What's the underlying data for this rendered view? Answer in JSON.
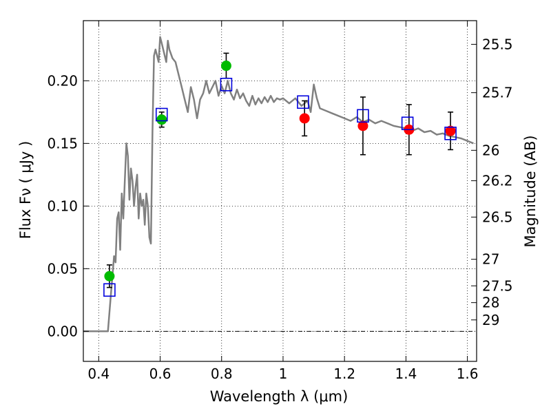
{
  "chart_data": {
    "type": "scatter",
    "xlabel": "Wavelength  λ (μm)",
    "ylabel": "Flux  Fν  ( μJy )",
    "y2label": "Magnitude (AB)",
    "xlim": [
      0.35,
      1.63
    ],
    "ylim": [
      -0.024,
      0.248
    ],
    "grid": true,
    "x_ticks": [
      0.4,
      0.6,
      0.8,
      1.0,
      1.2,
      1.4,
      1.6
    ],
    "x_tick_labels": [
      "0.4",
      "0.6",
      "0.8",
      "1",
      "1.2",
      "1.4",
      "1.6"
    ],
    "y_ticks": [
      0.0,
      0.05,
      0.1,
      0.15,
      0.2
    ],
    "y_tick_labels": [
      "0.00",
      "0.05",
      "0.10",
      "0.15",
      "0.20"
    ],
    "magnitude_ticks": [
      {
        "label": "25.5",
        "flux": 0.2291
      },
      {
        "label": "25.7",
        "flux": 0.1905
      },
      {
        "label": "26",
        "flux": 0.1445
      },
      {
        "label": "26.2",
        "flux": 0.1202
      },
      {
        "label": "26.5",
        "flux": 0.0912
      },
      {
        "label": "27",
        "flux": 0.0575
      },
      {
        "label": "27.5",
        "flux": 0.0363
      },
      {
        "label": "28",
        "flux": 0.0229
      },
      {
        "label": "29",
        "flux": 0.0091
      }
    ],
    "model_spectrum": {
      "color": "#808080",
      "x": [
        0.35,
        0.43,
        0.44,
        0.45,
        0.455,
        0.46,
        0.465,
        0.47,
        0.475,
        0.48,
        0.485,
        0.49,
        0.495,
        0.5,
        0.505,
        0.51,
        0.515,
        0.52,
        0.525,
        0.53,
        0.535,
        0.54,
        0.545,
        0.55,
        0.555,
        0.56,
        0.565,
        0.57,
        0.575,
        0.58,
        0.585,
        0.59,
        0.595,
        0.6,
        0.605,
        0.61,
        0.615,
        0.62,
        0.625,
        0.63,
        0.64,
        0.65,
        0.66,
        0.67,
        0.68,
        0.69,
        0.7,
        0.71,
        0.72,
        0.73,
        0.74,
        0.75,
        0.76,
        0.77,
        0.78,
        0.79,
        0.8,
        0.81,
        0.82,
        0.83,
        0.84,
        0.85,
        0.86,
        0.87,
        0.88,
        0.89,
        0.9,
        0.91,
        0.92,
        0.93,
        0.94,
        0.95,
        0.96,
        0.97,
        0.98,
        0.99,
        1.0,
        1.02,
        1.04,
        1.06,
        1.08,
        1.09,
        1.1,
        1.11,
        1.12,
        1.14,
        1.16,
        1.18,
        1.2,
        1.22,
        1.24,
        1.26,
        1.28,
        1.3,
        1.32,
        1.34,
        1.36,
        1.38,
        1.4,
        1.42,
        1.44,
        1.46,
        1.48,
        1.5,
        1.52,
        1.54,
        1.56,
        1.58,
        1.6,
        1.62
      ],
      "y": [
        0.0,
        0.0,
        0.03,
        0.06,
        0.055,
        0.09,
        0.095,
        0.065,
        0.11,
        0.09,
        0.12,
        0.15,
        0.14,
        0.105,
        0.13,
        0.12,
        0.1,
        0.115,
        0.125,
        0.09,
        0.11,
        0.1,
        0.105,
        0.085,
        0.11,
        0.1,
        0.075,
        0.07,
        0.16,
        0.22,
        0.225,
        0.22,
        0.215,
        0.235,
        0.23,
        0.225,
        0.22,
        0.215,
        0.232,
        0.225,
        0.218,
        0.215,
        0.205,
        0.195,
        0.185,
        0.175,
        0.195,
        0.185,
        0.17,
        0.185,
        0.19,
        0.2,
        0.19,
        0.195,
        0.2,
        0.188,
        0.196,
        0.19,
        0.2,
        0.19,
        0.185,
        0.193,
        0.186,
        0.19,
        0.184,
        0.18,
        0.188,
        0.181,
        0.186,
        0.182,
        0.187,
        0.183,
        0.188,
        0.183,
        0.186,
        0.185,
        0.186,
        0.182,
        0.186,
        0.18,
        0.184,
        0.175,
        0.197,
        0.186,
        0.178,
        0.176,
        0.174,
        0.172,
        0.17,
        0.168,
        0.171,
        0.167,
        0.169,
        0.166,
        0.168,
        0.166,
        0.164,
        0.163,
        0.162,
        0.16,
        0.162,
        0.159,
        0.16,
        0.157,
        0.158,
        0.156,
        0.155,
        0.154,
        0.152,
        0.15
      ]
    },
    "series": [
      {
        "name": "",
        "marker": "circle",
        "color": "#00bb00",
        "x": [
          0.435,
          0.605,
          0.815
        ],
        "y": [
          0.044,
          0.169,
          0.212
        ],
        "yerr": [
          0.009,
          0.006,
          0.01
        ]
      },
      {
        "name": "",
        "marker": "circle",
        "color": "#ff0000",
        "x": [
          1.07,
          1.26,
          1.41,
          1.545
        ],
        "y": [
          0.17,
          0.164,
          0.161,
          0.16
        ],
        "yerr": [
          0.014,
          0.023,
          0.02,
          0.015
        ]
      },
      {
        "name": "",
        "marker": "square-open",
        "color": "#0000dd",
        "x": [
          0.435,
          0.605,
          0.815,
          1.065,
          1.26,
          1.405,
          1.545
        ],
        "y": [
          0.033,
          0.173,
          0.197,
          0.183,
          0.172,
          0.166,
          0.158
        ]
      }
    ]
  }
}
